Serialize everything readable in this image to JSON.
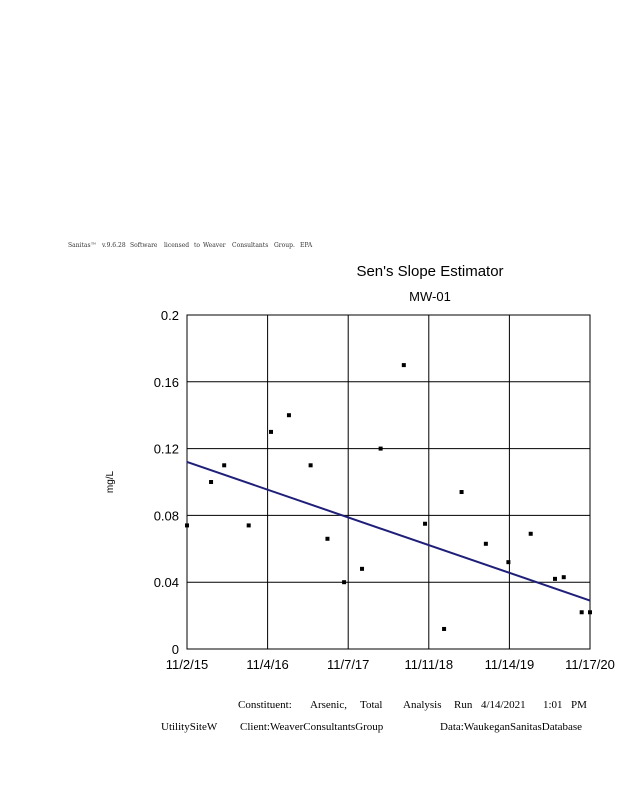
{
  "header_note": [
    "Sanitas™",
    "v.9.6.28",
    "Software",
    "licensed",
    "to",
    "Weaver",
    "Consultants",
    "Group.",
    "EPA"
  ],
  "chart_data": {
    "type": "scatter",
    "title": "Sen's Slope Estimator",
    "subtitle": "MW-01",
    "xlabel": "",
    "ylabel": "mg/L",
    "x_tick_labels": [
      "11/2/15",
      "11/4/16",
      "11/7/17",
      "11/11/18",
      "11/14/19",
      "11/17/20"
    ],
    "y_tick_labels": [
      "0",
      "0.04",
      "0.08",
      "0.12",
      "0.16",
      "0.2"
    ],
    "xlim": [
      "2015-11-02",
      "2020-11-17"
    ],
    "ylim": [
      0,
      0.2
    ],
    "grid": true,
    "marker_color": "#000000",
    "line_color": "#1f1f7a",
    "series": [
      {
        "points": [
          {
            "x": "2015-11-02",
            "y": 0.074
          },
          {
            "x": "2016-02-20",
            "y": 0.1
          },
          {
            "x": "2016-04-20",
            "y": 0.11
          },
          {
            "x": "2016-08-10",
            "y": 0.074
          },
          {
            "x": "2016-11-20",
            "y": 0.13
          },
          {
            "x": "2017-02-10",
            "y": 0.14
          },
          {
            "x": "2017-05-20",
            "y": 0.11
          },
          {
            "x": "2017-08-05",
            "y": 0.066
          },
          {
            "x": "2017-10-20",
            "y": 0.04
          },
          {
            "x": "2018-01-10",
            "y": 0.048
          },
          {
            "x": "2018-04-05",
            "y": 0.12
          },
          {
            "x": "2018-07-20",
            "y": 0.17
          },
          {
            "x": "2018-10-25",
            "y": 0.075
          },
          {
            "x": "2019-01-20",
            "y": 0.012
          },
          {
            "x": "2019-04-10",
            "y": 0.094
          },
          {
            "x": "2019-07-30",
            "y": 0.063
          },
          {
            "x": "2019-11-10",
            "y": 0.052
          },
          {
            "x": "2020-02-20",
            "y": 0.069
          },
          {
            "x": "2020-06-10",
            "y": 0.042
          },
          {
            "x": "2020-07-20",
            "y": 0.043
          },
          {
            "x": "2020-10-10",
            "y": 0.022
          },
          {
            "x": "2020-11-17",
            "y": 0.022
          }
        ]
      }
    ],
    "trend_line": {
      "start": {
        "x": "2015-11-02",
        "y": 0.112
      },
      "end": {
        "x": "2020-11-17",
        "y": 0.029
      }
    }
  },
  "footer": {
    "constituent_label": "Constituent:",
    "constituent_value": "Arsenic,",
    "total": "Total",
    "analysis": "Analysis",
    "run": "Run",
    "date": "4/14/2021",
    "time": "1:01",
    "ampm": "PM",
    "site": "UtilitySiteW",
    "client": "Client:WeaverConsultantsGroup",
    "data": "Data:WaukeganSanitasDatabase"
  }
}
